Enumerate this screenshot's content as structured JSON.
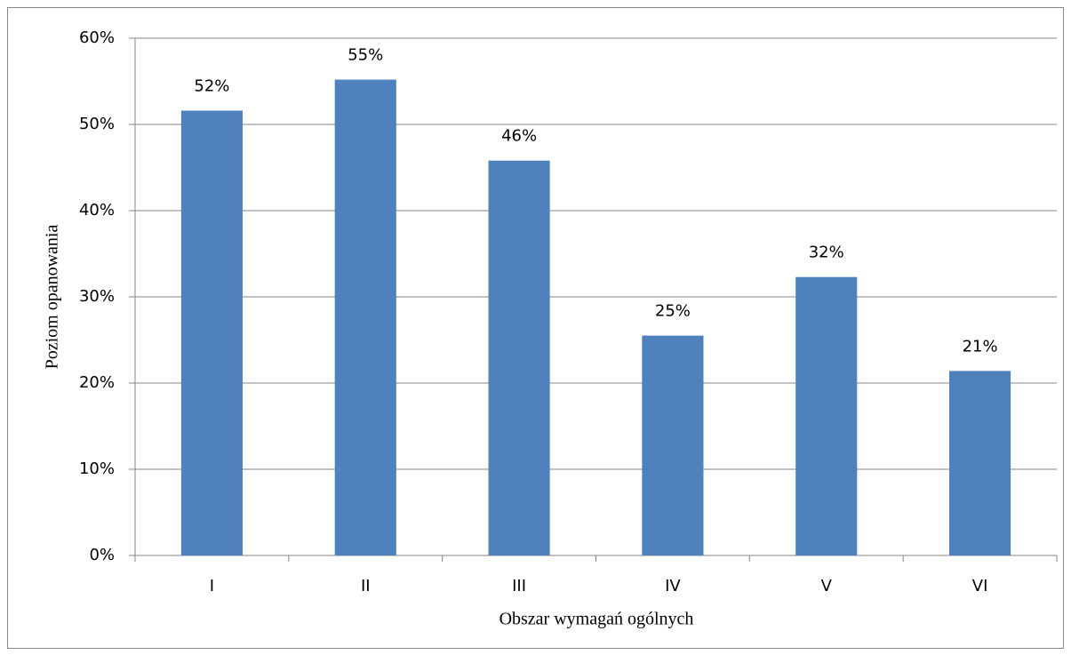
{
  "chart_data": {
    "type": "bar",
    "categories": [
      "I",
      "II",
      "III",
      "IV",
      "V",
      "VI"
    ],
    "values": [
      51.6,
      55.2,
      45.8,
      25.5,
      32.3,
      21.4
    ],
    "value_labels": [
      "52%",
      "55%",
      "46%",
      "25%",
      "32%",
      "21%"
    ],
    "color": "#4f81bd",
    "x_label": "Obszar wymagań ogólnych",
    "y_label": "Poziom opanowania",
    "ylim": [
      0,
      60
    ],
    "yticks": [
      {
        "value": 0,
        "label": "0%"
      },
      {
        "value": 10,
        "label": "10%"
      },
      {
        "value": 20,
        "label": "20%"
      },
      {
        "value": 30,
        "label": "30%"
      },
      {
        "value": 40,
        "label": "40%"
      },
      {
        "value": 50,
        "label": "50%"
      },
      {
        "value": 60,
        "label": "60%"
      }
    ],
    "grid": true
  }
}
